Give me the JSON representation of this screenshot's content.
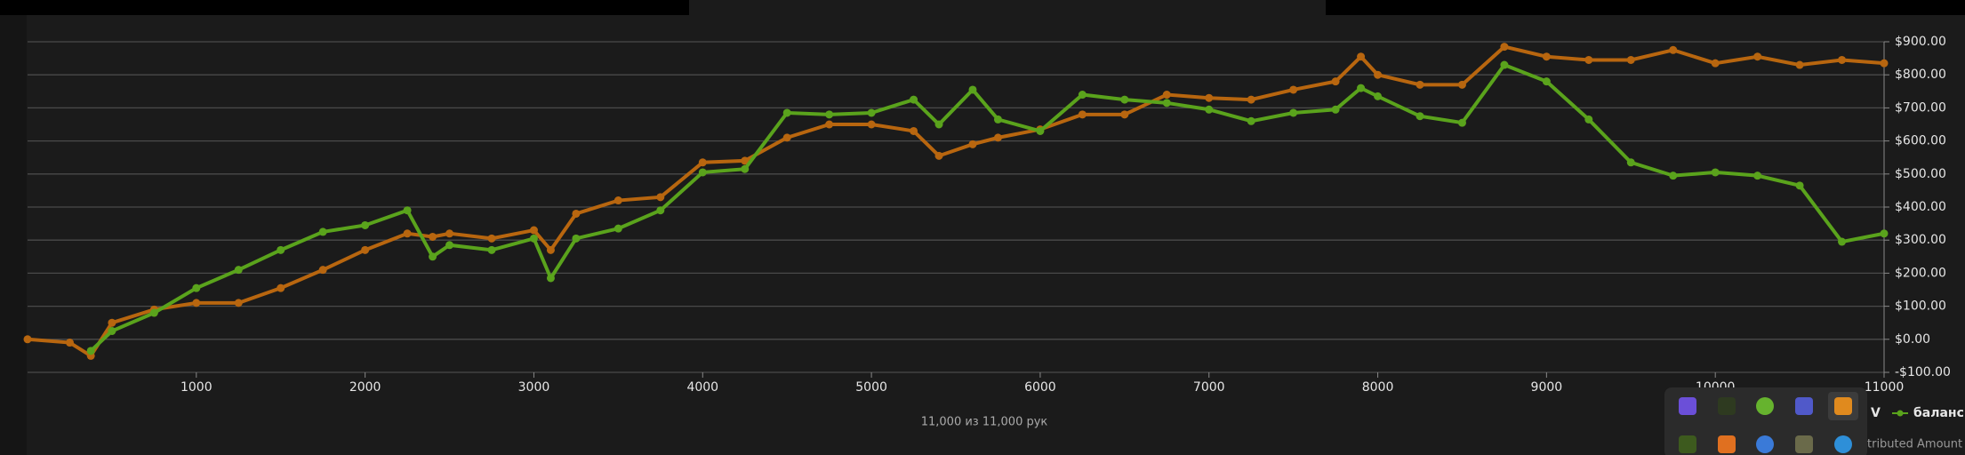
{
  "chart_data": {
    "type": "line",
    "x": [
      0,
      250,
      375,
      500,
      750,
      1000,
      1250,
      1500,
      1750,
      2000,
      2250,
      2400,
      2500,
      2750,
      3000,
      3100,
      3250,
      3500,
      3750,
      4000,
      4250,
      4500,
      4750,
      5000,
      5250,
      5400,
      5600,
      5750,
      6000,
      6250,
      6500,
      6750,
      7000,
      7250,
      7500,
      7750,
      7900,
      8000,
      8250,
      8500,
      8750,
      9000,
      9250,
      9500,
      9750,
      10000,
      10250,
      10500,
      10750,
      11000
    ],
    "series": [
      {
        "color": "#b8660f",
        "values": [
          0,
          -10,
          -50,
          50,
          90,
          110,
          110,
          155,
          210,
          270,
          320,
          310,
          320,
          305,
          330,
          270,
          380,
          420,
          430,
          535,
          540,
          610,
          650,
          650,
          630,
          555,
          590,
          610,
          635,
          680,
          680,
          740,
          730,
          725,
          755,
          780,
          855,
          800,
          770,
          770,
          885,
          855,
          845,
          845,
          875,
          835,
          855,
          830,
          845,
          835
        ]
      },
      {
        "name": "баланс",
        "color": "#5aa31c",
        "values": [
          null,
          null,
          -35,
          25,
          80,
          155,
          210,
          270,
          325,
          345,
          390,
          250,
          285,
          270,
          305,
          185,
          305,
          335,
          390,
          505,
          515,
          685,
          680,
          685,
          725,
          650,
          755,
          665,
          630,
          740,
          725,
          715,
          695,
          660,
          685,
          695,
          760,
          735,
          675,
          655,
          830,
          780,
          665,
          535,
          495,
          505,
          495,
          465,
          295,
          320
        ]
      }
    ],
    "xlim": [
      0,
      11000
    ],
    "xticks": [
      1000,
      2000,
      3000,
      4000,
      5000,
      6000,
      7000,
      8000,
      9000,
      10000,
      11000
    ],
    "ylim": [
      -100,
      900
    ],
    "yticks": [
      {
        "value": -100,
        "label": "-$100.00"
      },
      {
        "value": 0,
        "label": "$0.00"
      },
      {
        "value": 100,
        "label": "$100.00"
      },
      {
        "value": 200,
        "label": "$200.00"
      },
      {
        "value": 300,
        "label": "$300.00"
      },
      {
        "value": 400,
        "label": "$400.00"
      },
      {
        "value": 500,
        "label": "$500.00"
      },
      {
        "value": 600,
        "label": "$600.00"
      },
      {
        "value": 700,
        "label": "$700.00"
      },
      {
        "value": 800,
        "label": "$800.00"
      },
      {
        "value": 900,
        "label": "$900.00"
      }
    ],
    "grid": true,
    "footer": "11,000 из 11,000 рук",
    "legend_fragments": [
      "V",
      "tributed Amount"
    ]
  }
}
